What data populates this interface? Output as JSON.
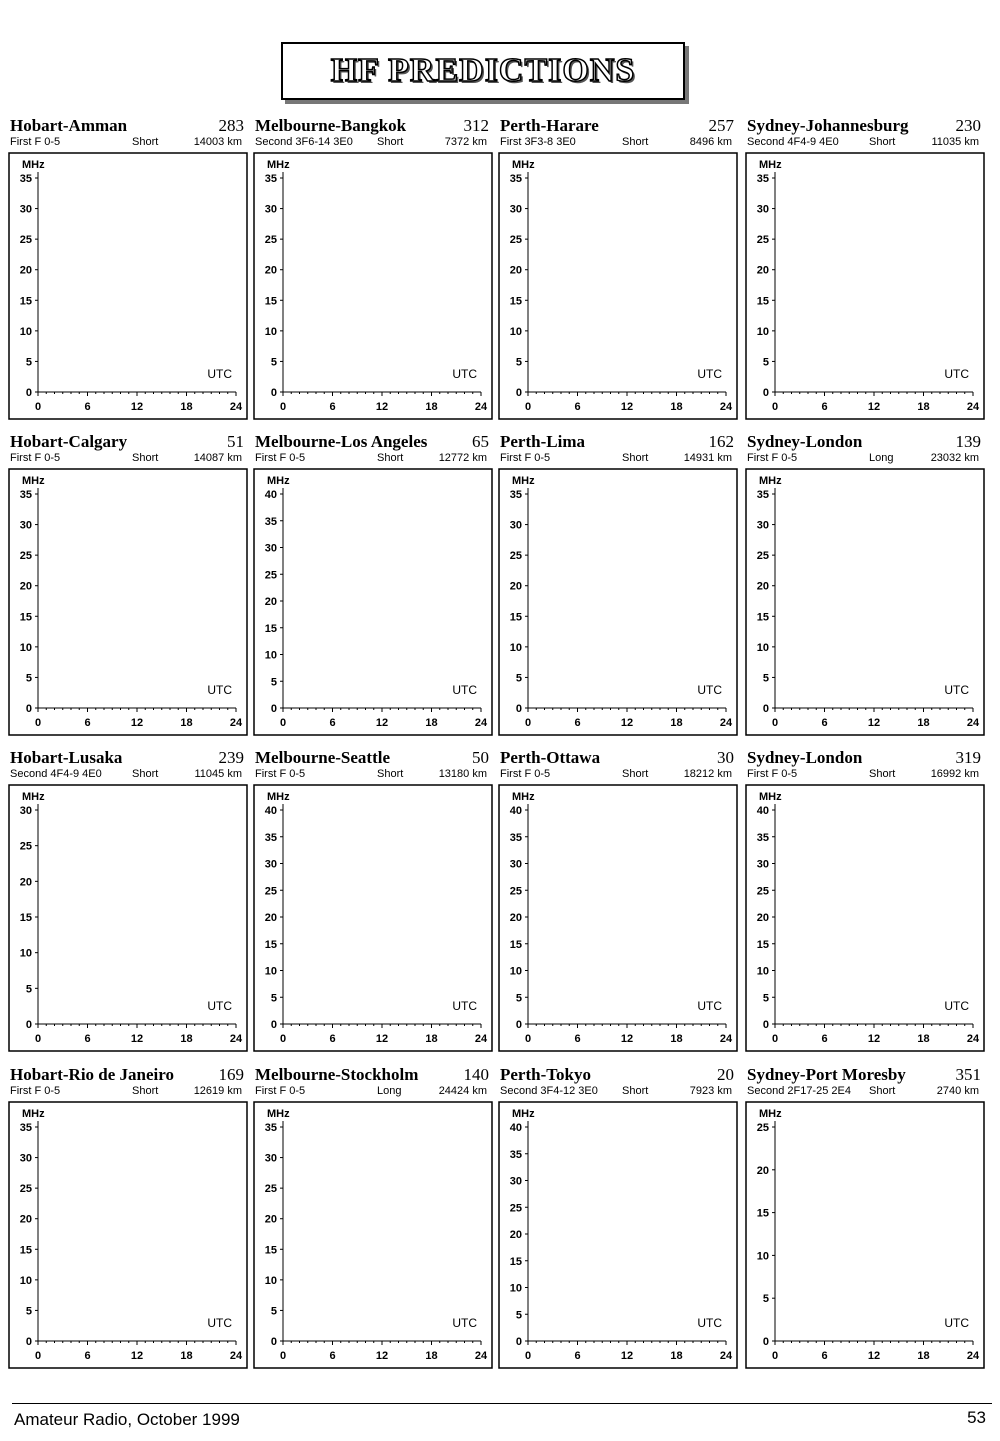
{
  "header": {
    "title": "HF PREDICTIONS"
  },
  "footer": {
    "publication": "Amateur Radio, October 1999",
    "page": "53"
  },
  "chart_data": [
    {
      "type": "line",
      "title": "Hobart-Amman",
      "number": "283",
      "mode": "First F 0-5",
      "path": "Short",
      "distance": "14003 km",
      "ylabel": "MHz",
      "xlabel": "UTC",
      "ylim": [
        0,
        35
      ],
      "yticks": [
        0,
        5,
        10,
        15,
        20,
        25,
        30,
        35
      ],
      "xticks": [
        0,
        6,
        12,
        18,
        24
      ]
    },
    {
      "type": "line",
      "title": "Melbourne-Bangkok",
      "number": "312",
      "mode": "Second 3F6-14 3E0",
      "path": "Short",
      "distance": "7372 km",
      "ylabel": "MHz",
      "xlabel": "UTC",
      "ylim": [
        0,
        35
      ],
      "yticks": [
        0,
        5,
        10,
        15,
        20,
        25,
        30,
        35
      ],
      "xticks": [
        0,
        6,
        12,
        18,
        24
      ]
    },
    {
      "type": "line",
      "title": "Perth-Harare",
      "number": "257",
      "mode": "First 3F3-8 3E0",
      "path": "Short",
      "distance": "8496 km",
      "ylabel": "MHz",
      "xlabel": "UTC",
      "ylim": [
        0,
        35
      ],
      "yticks": [
        0,
        5,
        10,
        15,
        20,
        25,
        30,
        35
      ],
      "xticks": [
        0,
        6,
        12,
        18,
        24
      ]
    },
    {
      "type": "line",
      "title": "Sydney-Johannesburg",
      "number": "230",
      "mode": "Second 4F4-9 4E0",
      "path": "Short",
      "distance": "11035 km",
      "ylabel": "MHz",
      "xlabel": "UTC",
      "ylim": [
        0,
        35
      ],
      "yticks": [
        0,
        5,
        10,
        15,
        20,
        25,
        30,
        35
      ],
      "xticks": [
        0,
        6,
        12,
        18,
        24
      ]
    },
    {
      "type": "line",
      "title": "Hobart-Calgary",
      "number": "51",
      "mode": "First F 0-5",
      "path": "Short",
      "distance": "14087 km",
      "ylabel": "MHz",
      "xlabel": "UTC",
      "ylim": [
        0,
        35
      ],
      "yticks": [
        0,
        5,
        10,
        15,
        20,
        25,
        30,
        35
      ],
      "xticks": [
        0,
        6,
        12,
        18,
        24
      ]
    },
    {
      "type": "line",
      "title": "Melbourne-Los Angeles",
      "number": "65",
      "mode": "First F 0-5",
      "path": "Short",
      "distance": "12772 km",
      "ylabel": "MHz",
      "xlabel": "UTC",
      "ylim": [
        0,
        40
      ],
      "yticks": [
        0,
        5,
        10,
        15,
        20,
        25,
        30,
        35,
        40
      ],
      "xticks": [
        0,
        6,
        12,
        18,
        24
      ]
    },
    {
      "type": "line",
      "title": "Perth-Lima",
      "number": "162",
      "mode": "First F 0-5",
      "path": "Short",
      "distance": "14931 km",
      "ylabel": "MHz",
      "xlabel": "UTC",
      "ylim": [
        0,
        35
      ],
      "yticks": [
        0,
        5,
        10,
        15,
        20,
        25,
        30,
        35
      ],
      "xticks": [
        0,
        6,
        12,
        18,
        24
      ]
    },
    {
      "type": "line",
      "title": "Sydney-London",
      "number": "139",
      "mode": "First F 0-5",
      "path": "Long",
      "distance": "23032 km",
      "ylabel": "MHz",
      "xlabel": "UTC",
      "ylim": [
        0,
        35
      ],
      "yticks": [
        0,
        5,
        10,
        15,
        20,
        25,
        30,
        35
      ],
      "xticks": [
        0,
        6,
        12,
        18,
        24
      ]
    },
    {
      "type": "line",
      "title": "Hobart-Lusaka",
      "number": "239",
      "mode": "Second 4F4-9 4E0",
      "path": "Short",
      "distance": "11045 km",
      "ylabel": "MHz",
      "xlabel": "UTC",
      "ylim": [
        0,
        30
      ],
      "yticks": [
        0,
        5,
        10,
        15,
        20,
        25,
        30
      ],
      "xticks": [
        0,
        6,
        12,
        18,
        24
      ]
    },
    {
      "type": "line",
      "title": "Melbourne-Seattle",
      "number": "50",
      "mode": "First F 0-5",
      "path": "Short",
      "distance": "13180 km",
      "ylabel": "MHz",
      "xlabel": "UTC",
      "ylim": [
        0,
        40
      ],
      "yticks": [
        0,
        5,
        10,
        15,
        20,
        25,
        30,
        35,
        40
      ],
      "xticks": [
        0,
        6,
        12,
        18,
        24
      ]
    },
    {
      "type": "line",
      "title": "Perth-Ottawa",
      "number": "30",
      "mode": "First F 0-5",
      "path": "Short",
      "distance": "18212 km",
      "ylabel": "MHz",
      "xlabel": "UTC",
      "ylim": [
        0,
        40
      ],
      "yticks": [
        0,
        5,
        10,
        15,
        20,
        25,
        30,
        35,
        40
      ],
      "xticks": [
        0,
        6,
        12,
        18,
        24
      ]
    },
    {
      "type": "line",
      "title": "Sydney-London",
      "number": "319",
      "mode": "First F 0-5",
      "path": "Short",
      "distance": "16992 km",
      "ylabel": "MHz",
      "xlabel": "UTC",
      "ylim": [
        0,
        40
      ],
      "yticks": [
        0,
        5,
        10,
        15,
        20,
        25,
        30,
        35,
        40
      ],
      "xticks": [
        0,
        6,
        12,
        18,
        24
      ]
    },
    {
      "type": "line",
      "title": "Hobart-Rio de Janeiro",
      "number": "169",
      "mode": "First F 0-5",
      "path": "Short",
      "distance": "12619 km",
      "ylabel": "MHz",
      "xlabel": "UTC",
      "ylim": [
        0,
        35
      ],
      "yticks": [
        0,
        5,
        10,
        15,
        20,
        25,
        30,
        35
      ],
      "xticks": [
        0,
        6,
        12,
        18,
        24
      ]
    },
    {
      "type": "line",
      "title": "Melbourne-Stockholm",
      "number": "140",
      "mode": "First F 0-5",
      "path": "Long",
      "distance": "24424 km",
      "ylabel": "MHz",
      "xlabel": "UTC",
      "ylim": [
        0,
        35
      ],
      "yticks": [
        0,
        5,
        10,
        15,
        20,
        25,
        30,
        35
      ],
      "xticks": [
        0,
        6,
        12,
        18,
        24
      ]
    },
    {
      "type": "line",
      "title": "Perth-Tokyo",
      "number": "20",
      "mode": "Second 3F4-12 3E0",
      "path": "Short",
      "distance": "7923 km",
      "ylabel": "MHz",
      "xlabel": "UTC",
      "ylim": [
        0,
        40
      ],
      "yticks": [
        0,
        5,
        10,
        15,
        20,
        25,
        30,
        35,
        40
      ],
      "xticks": [
        0,
        6,
        12,
        18,
        24
      ]
    },
    {
      "type": "line",
      "title": "Sydney-Port Moresby",
      "number": "351",
      "mode": "Second 2F17-25 2E4",
      "path": "Short",
      "distance": "2740 km",
      "ylabel": "MHz",
      "xlabel": "UTC",
      "ylim": [
        0,
        25
      ],
      "yticks": [
        0,
        5,
        10,
        15,
        20,
        25
      ],
      "xticks": [
        0,
        6,
        12,
        18,
        24
      ]
    }
  ]
}
